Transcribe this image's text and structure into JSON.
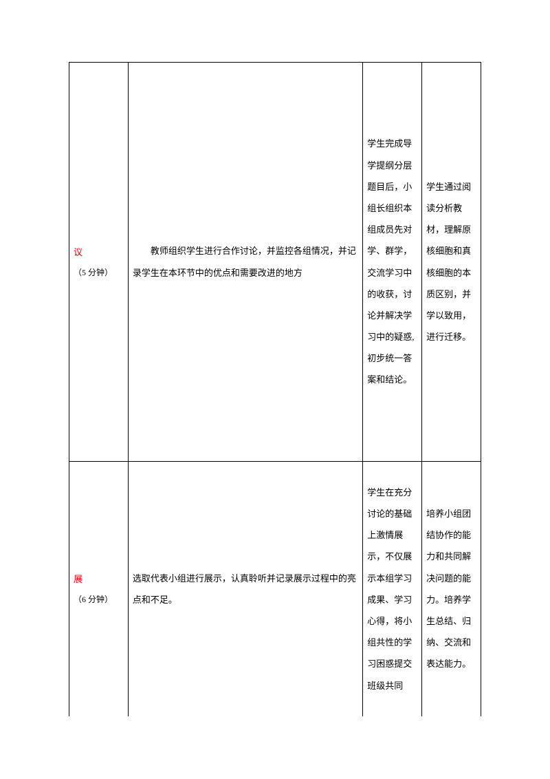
{
  "rows": [
    {
      "stage_label": "议",
      "stage_time": "（5 分钟）",
      "teacher": "教师组织学生进行合作讨论，并监控各组情况，并记录学生在本环节中的优点和需要改进的地方",
      "student": "学生完成导学提纲分层题目后，小组长组织本组成员先对学、群学，交流学习中的收获，讨论并解决学习中的疑惑,初步统一答案和结论。",
      "purpose": "学生通过阅读分析教材，理解原核细胞和真核细胞的本质区别，并学以致用，进行迁移。"
    },
    {
      "stage_label": "展",
      "stage_time": "（6 分钟）",
      "teacher": "选取代表小组进行展示，认真聆听并记录展示过程中的亮点和不足。",
      "student": "学生在充分讨论的基础上激情展示，不仅展示本组学习成果、学习心得，将小组共性的学习困惑提交班级共同",
      "purpose": "培养小组团结协作的能力和共同解决问题的能力。培养学生总结、归纳、交流和表达能力。"
    }
  ]
}
